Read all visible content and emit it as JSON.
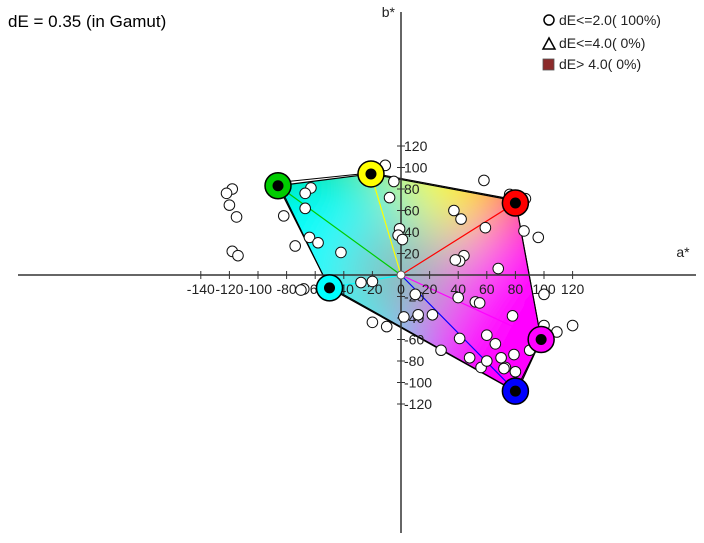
{
  "chart_data": {
    "type": "scatter",
    "title": "dE = 0.35 (in Gamut)",
    "xlabel": "a*",
    "ylabel": "b*",
    "xlim": [
      -175,
      135
    ],
    "ylim": [
      -125,
      125
    ],
    "x_ticks": [
      -140,
      -120,
      -100,
      -80,
      -60,
      -40,
      -20,
      0,
      20,
      40,
      60,
      80,
      100,
      120
    ],
    "y_ticks": [
      -120,
      -100,
      -80,
      -60,
      -40,
      -20,
      0,
      20,
      40,
      60,
      80,
      100,
      120
    ],
    "x_tick_labels": [
      "-140",
      "-120",
      "-100",
      "-80",
      "-60",
      "-40",
      "-20",
      "0",
      "20",
      "40",
      "60",
      "80",
      "100",
      "120"
    ],
    "y_tick_labels": [
      "-120",
      "-100",
      "-80",
      "-60",
      "-40",
      "-20",
      "",
      "20",
      "40",
      "60",
      "80",
      "100",
      "120"
    ],
    "legend": [
      {
        "marker": "circle",
        "label": "dE<=2.0( 100%)"
      },
      {
        "marker": "triangle",
        "label": "dE<=4.0(   0%)"
      },
      {
        "marker": "square",
        "label": "dE> 4.0(   0%)",
        "color": "#8b2a2a"
      }
    ],
    "primaries": [
      {
        "name": "red",
        "color": "#ff0000",
        "a": 80,
        "b": 67
      },
      {
        "name": "yellow",
        "color": "#ffff00",
        "a": -21,
        "b": 94
      },
      {
        "name": "green",
        "color": "#00cc00",
        "a": -86,
        "b": 83
      },
      {
        "name": "cyan",
        "color": "#00ffff",
        "a": -50,
        "b": -12
      },
      {
        "name": "blue",
        "color": "#0000ff",
        "a": 80,
        "b": -108
      },
      {
        "name": "magenta",
        "color": "#ff00ff",
        "a": 98,
        "b": -60
      }
    ],
    "gamut_outline": [
      {
        "a": -86,
        "b": 83
      },
      {
        "a": -21,
        "b": 94
      },
      {
        "a": 80,
        "b": 69
      },
      {
        "a": 98,
        "b": -60
      },
      {
        "a": 81,
        "b": -109
      },
      {
        "a": -50,
        "b": -12
      }
    ],
    "reference_outline": [
      {
        "a": -86,
        "b": 86
      },
      {
        "a": -21,
        "b": 95
      },
      {
        "a": 80,
        "b": 70
      },
      {
        "a": 98,
        "b": -60
      },
      {
        "a": 80,
        "b": -108
      },
      {
        "a": -51,
        "b": -10
      }
    ],
    "measured_points": [
      [
        -11,
        102
      ],
      [
        -63,
        81
      ],
      [
        -5,
        87
      ],
      [
        58,
        88
      ],
      [
        -118,
        80
      ],
      [
        -122,
        76
      ],
      [
        -120,
        65
      ],
      [
        -115,
        54
      ],
      [
        -82,
        55
      ],
      [
        -67,
        76
      ],
      [
        -67,
        62
      ],
      [
        -8,
        72
      ],
      [
        76,
        75
      ],
      [
        87,
        71
      ],
      [
        37,
        60
      ],
      [
        42,
        52
      ],
      [
        59,
        44
      ],
      [
        86,
        41
      ],
      [
        96,
        35
      ],
      [
        -1,
        43
      ],
      [
        -2,
        37
      ],
      [
        1,
        33
      ],
      [
        -64,
        35
      ],
      [
        -58,
        30
      ],
      [
        -74,
        27
      ],
      [
        -118,
        22
      ],
      [
        -114,
        18
      ],
      [
        -42,
        21
      ],
      [
        44,
        18
      ],
      [
        41,
        13
      ],
      [
        38,
        14
      ],
      [
        68,
        6
      ],
      [
        -46,
        -8
      ],
      [
        -28,
        -7
      ],
      [
        -20,
        -6
      ],
      [
        -68,
        -13
      ],
      [
        -70,
        -14
      ],
      [
        10,
        -18
      ],
      [
        40,
        -21
      ],
      [
        52,
        -25
      ],
      [
        55,
        -26
      ],
      [
        100,
        -18
      ],
      [
        2,
        -39
      ],
      [
        12,
        -37
      ],
      [
        22,
        -37
      ],
      [
        78,
        -38
      ],
      [
        -20,
        -44
      ],
      [
        -10,
        -48
      ],
      [
        100,
        -47
      ],
      [
        99,
        -55
      ],
      [
        109,
        -53
      ],
      [
        41,
        -59
      ],
      [
        60,
        -56
      ],
      [
        66,
        -64
      ],
      [
        90,
        -70
      ],
      [
        79,
        -74
      ],
      [
        70,
        -77
      ],
      [
        56,
        -86
      ],
      [
        48,
        -77
      ],
      [
        28,
        -70
      ],
      [
        60,
        -80
      ],
      [
        73,
        -86
      ],
      [
        72,
        -87
      ],
      [
        120,
        -47
      ],
      [
        80,
        -90
      ]
    ]
  }
}
